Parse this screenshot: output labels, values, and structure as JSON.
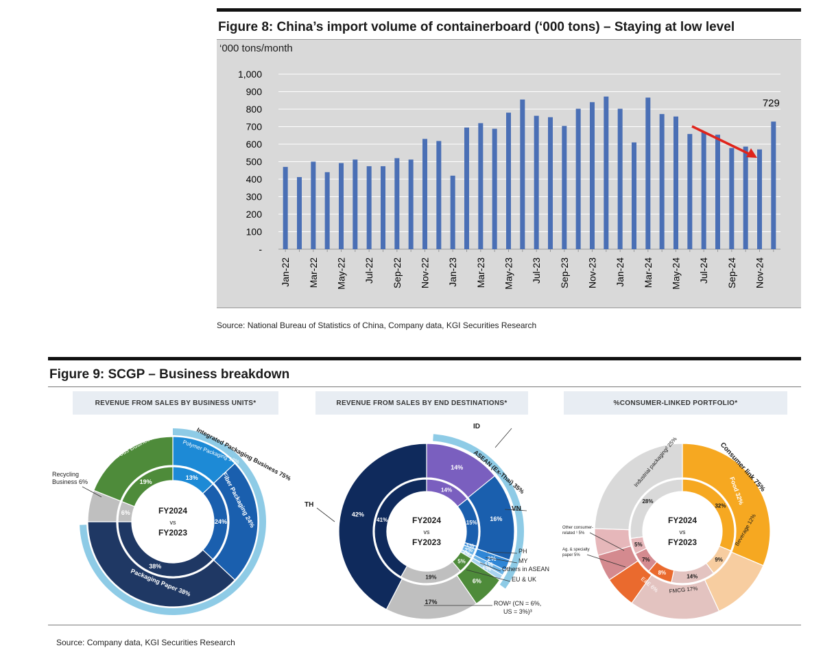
{
  "figure8": {
    "title": "Figure 8: China’s import volume of containerboard (‘000 tons) – Staying at low level",
    "unit_label": "‘000 tons/month",
    "source": "Source: National Bureau of Statistics of China, Company data, KGI Securities Research",
    "annotation_label": "729",
    "bar_color": "#4a6fb5",
    "arrow_color": "#e0241b"
  },
  "figure9": {
    "title": "Figure 9: SCGP – Business breakdown",
    "source": "Source: Company data, KGI Securities Research",
    "center_lines": [
      "FY2024",
      "vs",
      "FY2023"
    ],
    "donut1": {
      "header": "REVENUE FROM SALES BY BUSINESS UNITS*",
      "outer_labels": [
        "Integrated Packaging Business 75%",
        "Polymer Packaging 13%",
        "Fiber Packaging 24%",
        "Packaging Paper 38%",
        "Fibrous Business 19%"
      ],
      "side_labels": [
        "Recycling",
        "Business 6%"
      ]
    },
    "donut2": {
      "header": "REVENUE FROM SALES BY END DESTINATIONS*",
      "outer_labels": [
        "ID",
        "ASEAN (Ex-Thai) 35%",
        "VN",
        "TH",
        "PH",
        "MY",
        "Others in ASEAN",
        "EU & UK",
        "ROW² (CN = 6%,",
        "US = 3%)³"
      ]
    },
    "donut3": {
      "header": "%CONSUMER-LINKED PORTFOLIO*",
      "outer_labels": [
        "Consumer link 75%",
        "Food 32%",
        "Beverage 12%",
        "FMCG 17%",
        "E&E 6%",
        "Industrial packaging² 25%"
      ],
      "side_labels": [
        "Other consumer-",
        "related ¹ 5%",
        "Ag. & specialty",
        "paper 5%"
      ]
    }
  },
  "chart_data": [
    {
      "type": "bar",
      "title": "Figure 8: China’s import volume of containerboard (‘000 tons) – Staying at low level",
      "ylabel": "‘000 tons/month",
      "xlabel": "",
      "ylim": [
        0,
        1000
      ],
      "yticks": [
        "-",
        "100",
        "200",
        "300",
        "400",
        "500",
        "600",
        "700",
        "800",
        "900",
        "1,000"
      ],
      "grid": true,
      "categories": [
        "Jan-22",
        "Feb-22",
        "Mar-22",
        "Apr-22",
        "May-22",
        "Jun-22",
        "Jul-22",
        "Aug-22",
        "Sep-22",
        "Oct-22",
        "Nov-22",
        "Dec-22",
        "Jan-23",
        "Feb-23",
        "Mar-23",
        "Apr-23",
        "May-23",
        "Jun-23",
        "Jul-23",
        "Aug-23",
        "Sep-23",
        "Oct-23",
        "Nov-23",
        "Dec-23",
        "Jan-24",
        "Feb-24",
        "Mar-24",
        "Apr-24",
        "May-24",
        "Jun-24",
        "Jul-24",
        "Aug-24",
        "Sep-24",
        "Oct-24",
        "Nov-24",
        "Dec-24"
      ],
      "tick_labels": [
        "Jan-22",
        "Mar-22",
        "May-22",
        "Jul-22",
        "Sep-22",
        "Nov-22",
        "Jan-23",
        "Mar-23",
        "May-23",
        "Jul-23",
        "Sep-23",
        "Nov-23",
        "Jan-24",
        "Mar-24",
        "May-24",
        "Jul-24",
        "Sep-24",
        "Nov-24"
      ],
      "values": [
        470,
        412,
        500,
        440,
        492,
        512,
        474,
        474,
        520,
        512,
        630,
        618,
        420,
        695,
        720,
        688,
        780,
        855,
        762,
        754,
        704,
        802,
        840,
        872,
        802,
        610,
        866,
        772,
        758,
        658,
        668,
        654,
        578,
        586,
        570,
        729
      ],
      "annotations": [
        {
          "label": "729",
          "category": "Dec-24"
        }
      ]
    },
    {
      "type": "pie",
      "title": "REVENUE FROM SALES BY BUSINESS UNITS*",
      "series": [
        {
          "name": "FY2024",
          "labels": [
            "Polymer Packaging",
            "Fiber Packaging",
            "Packaging Paper",
            "Recycling Business",
            "Fibrous Business"
          ],
          "values": [
            13,
            24,
            38,
            6,
            19
          ]
        },
        {
          "name": "FY2023",
          "labels": [
            "Polymer Packaging",
            "Fiber Packaging",
            "Packaging Paper",
            "Recycling Business",
            "Fibrous Business"
          ],
          "values": [
            13,
            24,
            38,
            6,
            19
          ]
        }
      ],
      "inner_value_labels": [
        "13%",
        "24%",
        "38%",
        "6%",
        "19%"
      ]
    },
    {
      "type": "pie",
      "title": "REVENUE FROM SALES BY END DESTINATIONS*",
      "series": [
        {
          "name": "FY2024",
          "labels": [
            "ID",
            "VN",
            "PH",
            "MY",
            "Others in ASEAN",
            "EU & UK",
            "ROW",
            "TH"
          ],
          "values": [
            14,
            16,
            2,
            1,
            1,
            6,
            17,
            42
          ]
        },
        {
          "name": "FY2023",
          "labels": [
            "ID",
            "VN",
            "PH",
            "MY",
            "Others in ASEAN",
            "EU & UK",
            "ROW",
            "TH"
          ],
          "values": [
            14,
            15,
            1,
            2,
            1,
            5,
            19,
            41
          ]
        }
      ],
      "outer_value_labels": [
        "14%",
        "16%",
        "2%",
        "1%",
        "1%",
        "6%",
        "17%",
        "42%"
      ],
      "inner_value_labels": [
        "14%",
        "15%",
        "1%",
        "2%",
        "1%",
        "5%",
        "19%",
        "41%"
      ]
    },
    {
      "type": "pie",
      "title": "%CONSUMER-LINKED PORTFOLIO*",
      "series": [
        {
          "name": "FY2024",
          "labels": [
            "Food",
            "Beverage",
            "FMCG",
            "E&E",
            "Ag. & specialty paper",
            "Other consumer-related",
            "Industrial packaging"
          ],
          "values": [
            32,
            12,
            17,
            6,
            5,
            5,
            25
          ]
        },
        {
          "name": "FY2023",
          "labels": [
            "Food",
            "Beverage",
            "FMCG",
            "E&E",
            "Ag. & specialty paper",
            "Other consumer-related",
            "Industrial packaging"
          ],
          "values": [
            32,
            9,
            14,
            8,
            7,
            5,
            28
          ]
        }
      ],
      "inner_value_labels": [
        "32%",
        "9%",
        "14%",
        "8%",
        "7%",
        "5%",
        "28%"
      ]
    }
  ]
}
